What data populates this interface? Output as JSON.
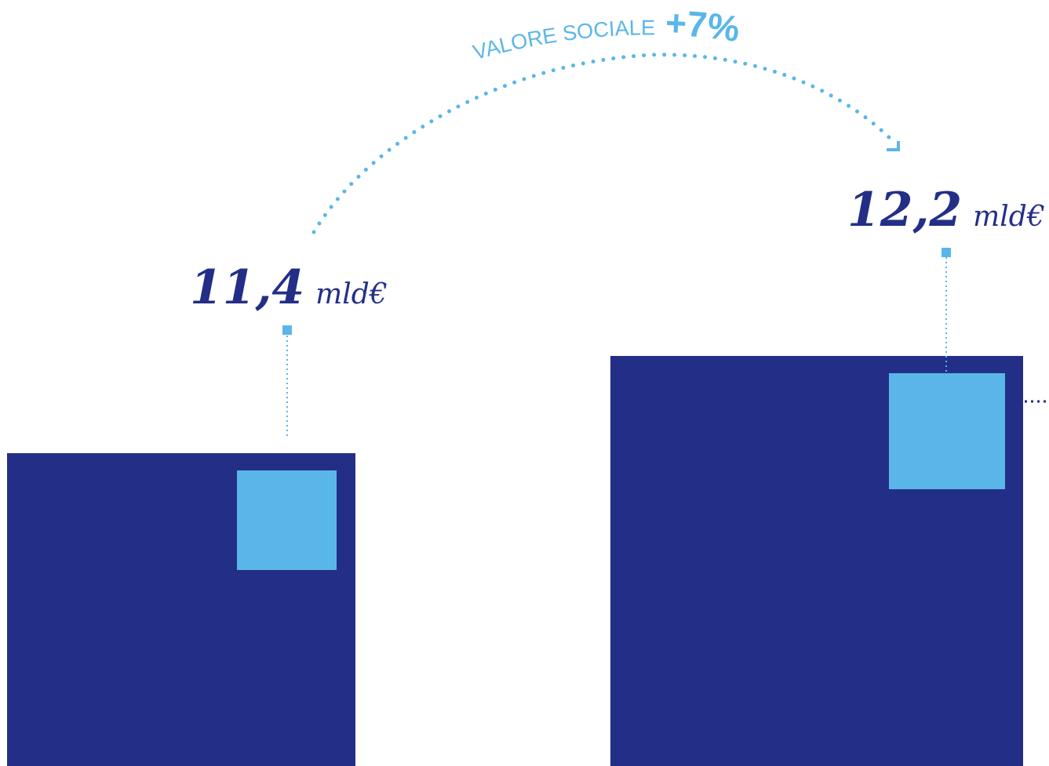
{
  "colors": {
    "bar": "#232f87",
    "accent": "#5ab6e8",
    "label": "#232f87",
    "connector": "#232f87"
  },
  "annotation": {
    "label": "VALORE SOCIALE",
    "change": "+7%"
  },
  "chart_data": {
    "type": "bar",
    "categories": [
      "",
      ""
    ],
    "values": [
      11.4,
      12.2
    ],
    "value_labels": [
      "11,4",
      "12,2"
    ],
    "unit": "mld€",
    "ylim": [
      0,
      12.2
    ],
    "grid": false,
    "legend": "none"
  }
}
